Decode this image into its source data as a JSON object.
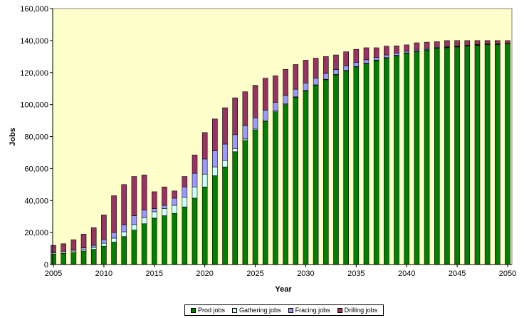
{
  "chart_data": {
    "type": "bar",
    "stacked": true,
    "title": "",
    "xlabel": "Year",
    "ylabel": "Jobs",
    "ylim": [
      0,
      160000
    ],
    "yticks": [
      "0",
      "20,000",
      "40,000",
      "60,000",
      "80,000",
      "100,000",
      "120,000",
      "140,000",
      "160,000"
    ],
    "xticks": [
      "2005",
      "2010",
      "2015",
      "2020",
      "2025",
      "2030",
      "2035",
      "2040",
      "2045",
      "2050"
    ],
    "grid": false,
    "legend_position": "bottom",
    "plot_background": "#ffffcc",
    "categories": [
      2005,
      2006,
      2007,
      2008,
      2009,
      2010,
      2011,
      2012,
      2013,
      2014,
      2015,
      2016,
      2017,
      2018,
      2019,
      2020,
      2021,
      2022,
      2023,
      2024,
      2025,
      2026,
      2027,
      2028,
      2029,
      2030,
      2031,
      2032,
      2033,
      2034,
      2035,
      2036,
      2037,
      2038,
      2039,
      2040,
      2041,
      2042,
      2043,
      2044,
      2045,
      2046,
      2047,
      2048,
      2049,
      2050
    ],
    "series": [
      {
        "name": "Prod jobs",
        "color": "#008000",
        "values": [
          6500,
          7000,
          7500,
          8500,
          9500,
          11500,
          14000,
          17500,
          21500,
          25500,
          29000,
          30500,
          32000,
          36000,
          41500,
          48500,
          55500,
          61000,
          70500,
          77500,
          84000,
          89500,
          95500,
          100000,
          104500,
          108500,
          112000,
          115500,
          118500,
          121000,
          123500,
          125500,
          127500,
          129000,
          130500,
          132000,
          133000,
          134000,
          135000,
          135500,
          136000,
          136500,
          137000,
          137500,
          137500,
          138000
        ]
      },
      {
        "name": "Gathering jobs",
        "color": "#ccffff",
        "values": [
          700,
          800,
          900,
          1000,
          1200,
          1800,
          2500,
          3000,
          3500,
          3800,
          4000,
          4500,
          5000,
          6000,
          7000,
          8000,
          5500,
          4000,
          2000,
          1000,
          700,
          600,
          500,
          400,
          300,
          300,
          300,
          300,
          300,
          300,
          300,
          300,
          300,
          300,
          300,
          300,
          300,
          300,
          300,
          300,
          300,
          300,
          300,
          300,
          300,
          300
        ]
      },
      {
        "name": "Fracing jobs",
        "color": "#9999ff",
        "values": [
          500,
          600,
          700,
          900,
          1300,
          2200,
          3500,
          4300,
          5500,
          4700,
          2000,
          2000,
          4500,
          6500,
          8500,
          9500,
          10000,
          10300,
          8700,
          8300,
          7000,
          6400,
          5400,
          5300,
          4800,
          4700,
          4200,
          3700,
          3100,
          2900,
          2600,
          2200,
          1700,
          1700,
          1400,
          1000,
          800,
          700,
          500,
          400,
          200,
          200,
          200,
          100,
          100,
          0
        ]
      },
      {
        "name": "Drilling jobs",
        "color": "#993366",
        "values": [
          4300,
          4600,
          6400,
          8600,
          11000,
          15500,
          23000,
          25200,
          24500,
          22000,
          10500,
          11500,
          4500,
          6500,
          11500,
          16500,
          20000,
          22700,
          23000,
          21200,
          20300,
          20000,
          16600,
          16300,
          15400,
          14200,
          12500,
          10500,
          9100,
          8800,
          8100,
          7500,
          6000,
          5500,
          4500,
          4000,
          4500,
          4000,
          3500,
          3800,
          3500,
          3000,
          2500,
          2100,
          2100,
          1700
        ]
      }
    ]
  }
}
